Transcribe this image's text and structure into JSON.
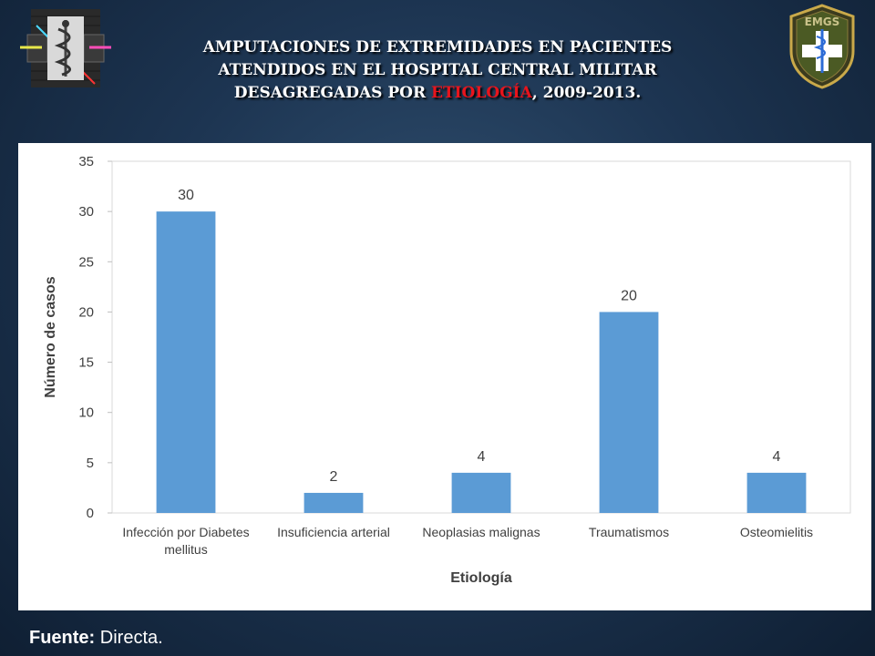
{
  "title": {
    "line1": "AMPUTACIONES DE EXTREMIDADES EN PACIENTES",
    "line2": "ATENDIDOS EN EL HOSPITAL CENTRAL MILITAR",
    "line3_before": "DESAGREGADAS POR ",
    "line3_highlight": "ETIOLOGÍA",
    "line3_after": ", 2009-2013."
  },
  "logos": {
    "right_text": "EMGS"
  },
  "footer": {
    "label": "Fuente:",
    "value": " Directa."
  },
  "colors": {
    "bar": "#5b9bd5",
    "highlight": "#e8141c"
  },
  "chart_data": {
    "type": "bar",
    "categories": [
      "Infección por Diabetes mellitus",
      "Insuficiencia arterial",
      "Neoplasias malignas",
      "Traumatismos",
      "Osteomielitis"
    ],
    "category_lines": [
      [
        "Infección por Diabetes",
        "mellitus"
      ],
      [
        "Insuficiencia arterial"
      ],
      [
        "Neoplasias malignas"
      ],
      [
        "Traumatismos"
      ],
      [
        "Osteomielitis"
      ]
    ],
    "values": [
      30,
      2,
      4,
      20,
      4
    ],
    "data_labels": [
      "30",
      "2",
      "4",
      "20",
      "4"
    ],
    "xlabel": "Etiología",
    "ylabel": "Número de casos",
    "ylim": [
      0,
      35
    ],
    "yticks": [
      0,
      5,
      10,
      15,
      20,
      25,
      30,
      35
    ],
    "grid": false,
    "legend": "none"
  }
}
